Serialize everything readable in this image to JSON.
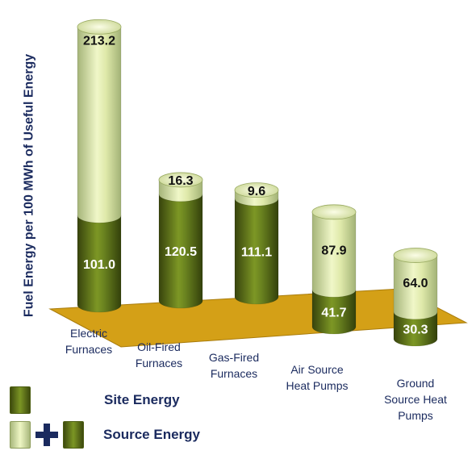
{
  "chart_data": {
    "type": "bar",
    "stacked": true,
    "style": "3d-cylinder",
    "ylabel": "Fuel Energy per 100 MWh of Useful Energy",
    "categories": [
      [
        "Electric",
        "Furnaces"
      ],
      [
        "Oil-Fired",
        "Furnaces"
      ],
      [
        "Gas-Fired",
        "Furnaces"
      ],
      [
        "Air Source",
        "Heat Pumps"
      ],
      [
        "Ground",
        "Source Heat",
        "Pumps"
      ]
    ],
    "series": [
      {
        "name": "Site Energy",
        "values": [
          101.0,
          120.5,
          111.1,
          41.7,
          30.3
        ],
        "labels": [
          "101.0",
          "120.5",
          "111.1",
          "41.7",
          "30.3"
        ]
      },
      {
        "name": "Source Energy",
        "values": [
          213.2,
          16.3,
          9.6,
          87.9,
          64.0
        ],
        "labels": [
          "213.2",
          "16.3",
          "9.6",
          "87.9",
          "64.0"
        ]
      }
    ],
    "colors": {
      "site_dark": "#3d4a0e",
      "site_light": "#7d9725",
      "source_dark": "#a5b479",
      "source_light": "#f0f7c8",
      "floor": "#d4a017"
    }
  },
  "legend": {
    "site_label": "Site Energy",
    "source_label": "Source Energy"
  }
}
